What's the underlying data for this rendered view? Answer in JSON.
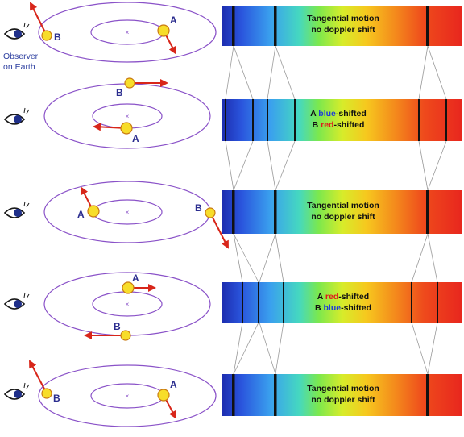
{
  "observer": {
    "line1": "Observer",
    "line2": "on Earth"
  },
  "colors": {
    "orbit": "#8a52c8",
    "arrow": "#d8261a",
    "star": "#f7dd2a",
    "star_outline": "#c97a12",
    "star_label": "#2b2d8f",
    "observer_label": "#2d3fa0",
    "line_connector": "#999999"
  },
  "rows": [
    {
      "a_label": "A",
      "b_label": "B",
      "text": {
        "line1": "Tangential motion",
        "line2": "no doppler shift"
      }
    },
    {
      "a_label": "A",
      "b_label": "B",
      "text": {
        "line1_pre": "A ",
        "line1_word": "blue",
        "line1_post": "-shifted",
        "line2_pre": "B ",
        "line2_word": "red",
        "line2_post": "-shifted"
      }
    },
    {
      "a_label": "A",
      "b_label": "B",
      "text": {
        "line1": "Tangential motion",
        "line2": "no doppler shift"
      }
    },
    {
      "a_label": "A",
      "b_label": "B",
      "text": {
        "line1_pre": "A ",
        "line1_word": "red",
        "line1_post": "-shifted",
        "line2_pre": "B ",
        "line2_word": "blue",
        "line2_post": "-shifted"
      }
    },
    {
      "a_label": "A",
      "b_label": "B",
      "text": {
        "line1": "Tangential motion",
        "line2": "no doppler shift"
      }
    }
  ]
}
